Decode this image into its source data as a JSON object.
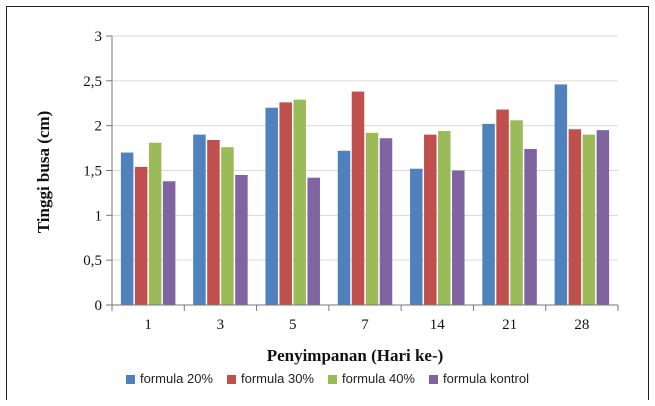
{
  "chart_data": {
    "type": "bar",
    "title": "",
    "xlabel": "Penyimpanan (Hari ke-)",
    "ylabel": "Tinggi busa (cm)",
    "ylim": [
      0,
      3
    ],
    "y_ticks": [
      "0",
      "0,5",
      "1",
      "1,5",
      "2",
      "2,5",
      "3"
    ],
    "grid": "horizontal",
    "legend_position": "bottom",
    "categories": [
      "1",
      "3",
      "5",
      "7",
      "14",
      "21",
      "28"
    ],
    "series": [
      {
        "name": "formula 20%",
        "color": "#4f81bd",
        "values": [
          1.7,
          1.9,
          2.2,
          1.72,
          1.52,
          2.02,
          2.46
        ]
      },
      {
        "name": "formula 30%",
        "color": "#c0504d",
        "values": [
          1.54,
          1.84,
          2.26,
          2.38,
          1.9,
          2.18,
          1.96
        ]
      },
      {
        "name": "formula 40%",
        "color": "#9bbb59",
        "values": [
          1.81,
          1.76,
          2.29,
          1.92,
          1.94,
          2.06,
          1.9
        ]
      },
      {
        "name": "formula kontrol",
        "color": "#8064a2",
        "values": [
          1.38,
          1.45,
          1.42,
          1.86,
          1.5,
          1.74,
          1.95
        ]
      }
    ]
  }
}
